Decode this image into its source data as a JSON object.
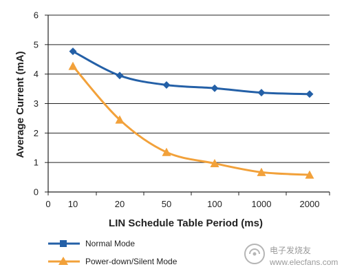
{
  "chart_data": {
    "type": "line",
    "xlabel": "LIN Schedule Table Period (ms)",
    "ylabel": "Average Current (mA)",
    "categories": [
      "0",
      "10",
      "20",
      "50",
      "100",
      "1000",
      "2000"
    ],
    "ylim": [
      0,
      6
    ],
    "yticks": [
      "0",
      "1",
      "2",
      "3",
      "4",
      "5",
      "6"
    ],
    "grid": "horizontal",
    "legend_position": "bottom-left",
    "series": [
      {
        "name": "Normal Mode",
        "color": "#2460a7",
        "marker": "diamond",
        "x": [
          "10",
          "20",
          "50",
          "100",
          "1000",
          "2000"
        ],
        "values": [
          4.77,
          3.95,
          3.63,
          3.52,
          3.37,
          3.32
        ]
      },
      {
        "name": "Power-down/Silent Mode",
        "color": "#f2a13a",
        "marker": "triangle",
        "x": [
          "10",
          "20",
          "50",
          "100",
          "1000",
          "2000"
        ],
        "values": [
          4.27,
          2.45,
          1.35,
          0.97,
          0.67,
          0.58
        ]
      }
    ]
  },
  "watermark": {
    "brand_text": "电子发烧友",
    "url_text": "www.elecfans.com"
  },
  "colors": {
    "axis": "#222222",
    "grid": "#222222"
  }
}
